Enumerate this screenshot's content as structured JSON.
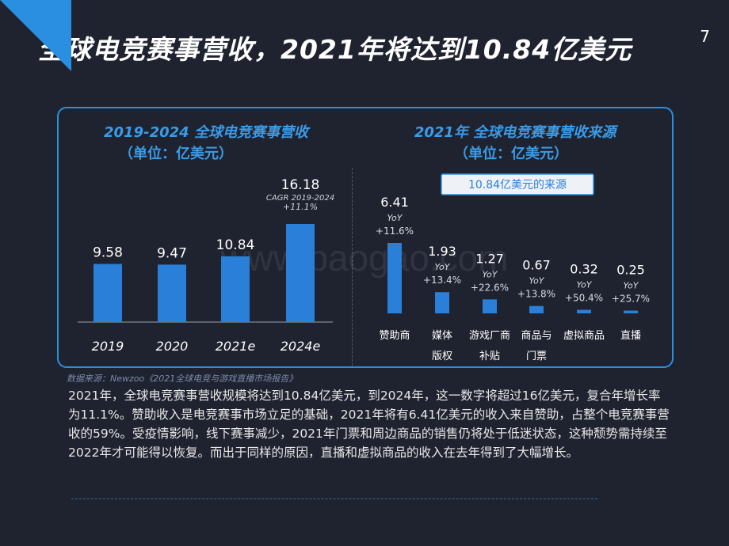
{
  "page": {
    "title": "全球电竞赛事营收，2021年将达到10.84亿美元",
    "page_number": "7",
    "source": "数据来源：Newzoo《2021全球电竞与游戏直播市场报告》",
    "paragraph": "2021年，全球电竞赛事营收规模将达到10.84亿美元，到2024年，这一数字将超过16亿美元，复合年增长率为11.1%。赞助收入是电竞赛事市场立足的基础，2021年将有6.41亿美元的收入来自赞助，占整个电竞赛事营收的59%。受疫情影响，线下赛事减少，2021年门票和周边商品的销售仍将处于低迷状态，这种颓势需持续至2022年才可能得以恢复。而出于同样的原因，直播和虚拟商品的收入在去年得到了大幅增长。",
    "watermark": "www.baogao.com"
  },
  "colors": {
    "background": "#1f2330",
    "accent": "#2a8fe0",
    "bar": "#2a7fd8",
    "title_blue": "#3a9be8"
  },
  "chart_data": [
    {
      "type": "bar",
      "title": "2019-2024 全球电竞赛事营收",
      "subtitle": "（单位：亿美元）",
      "categories": [
        "2019",
        "2020",
        "2021e",
        "2024e"
      ],
      "values": [
        9.58,
        9.47,
        10.84,
        16.18
      ],
      "annotation": {
        "category": "2024e",
        "line1": "CAGR 2019-2024",
        "line2": "+11.1%"
      },
      "ylim": [
        0,
        18
      ]
    },
    {
      "type": "bar",
      "title": "2021年 全球电竞赛事营收来源",
      "subtitle": "（单位：亿美元）",
      "badge": "10.84亿美元的来源",
      "categories": [
        "赞助商",
        "媒体版权",
        "游戏厂商补贴",
        "商品与门票",
        "虚拟商品",
        "直播"
      ],
      "category_lines": [
        [
          "赞助商"
        ],
        [
          "媒体",
          "版权"
        ],
        [
          "游戏厂商",
          "补贴"
        ],
        [
          "商品与",
          "门票"
        ],
        [
          "虚拟商品"
        ],
        [
          "直播"
        ]
      ],
      "values": [
        6.41,
        1.93,
        1.27,
        0.67,
        0.32,
        0.25
      ],
      "yoy_label": "YoY",
      "yoy": [
        "+11.6%",
        "+13.4%",
        "+22.6%",
        "+13.8%",
        "+50.4%",
        "+25.7%"
      ],
      "ylim": [
        0,
        7
      ]
    }
  ]
}
